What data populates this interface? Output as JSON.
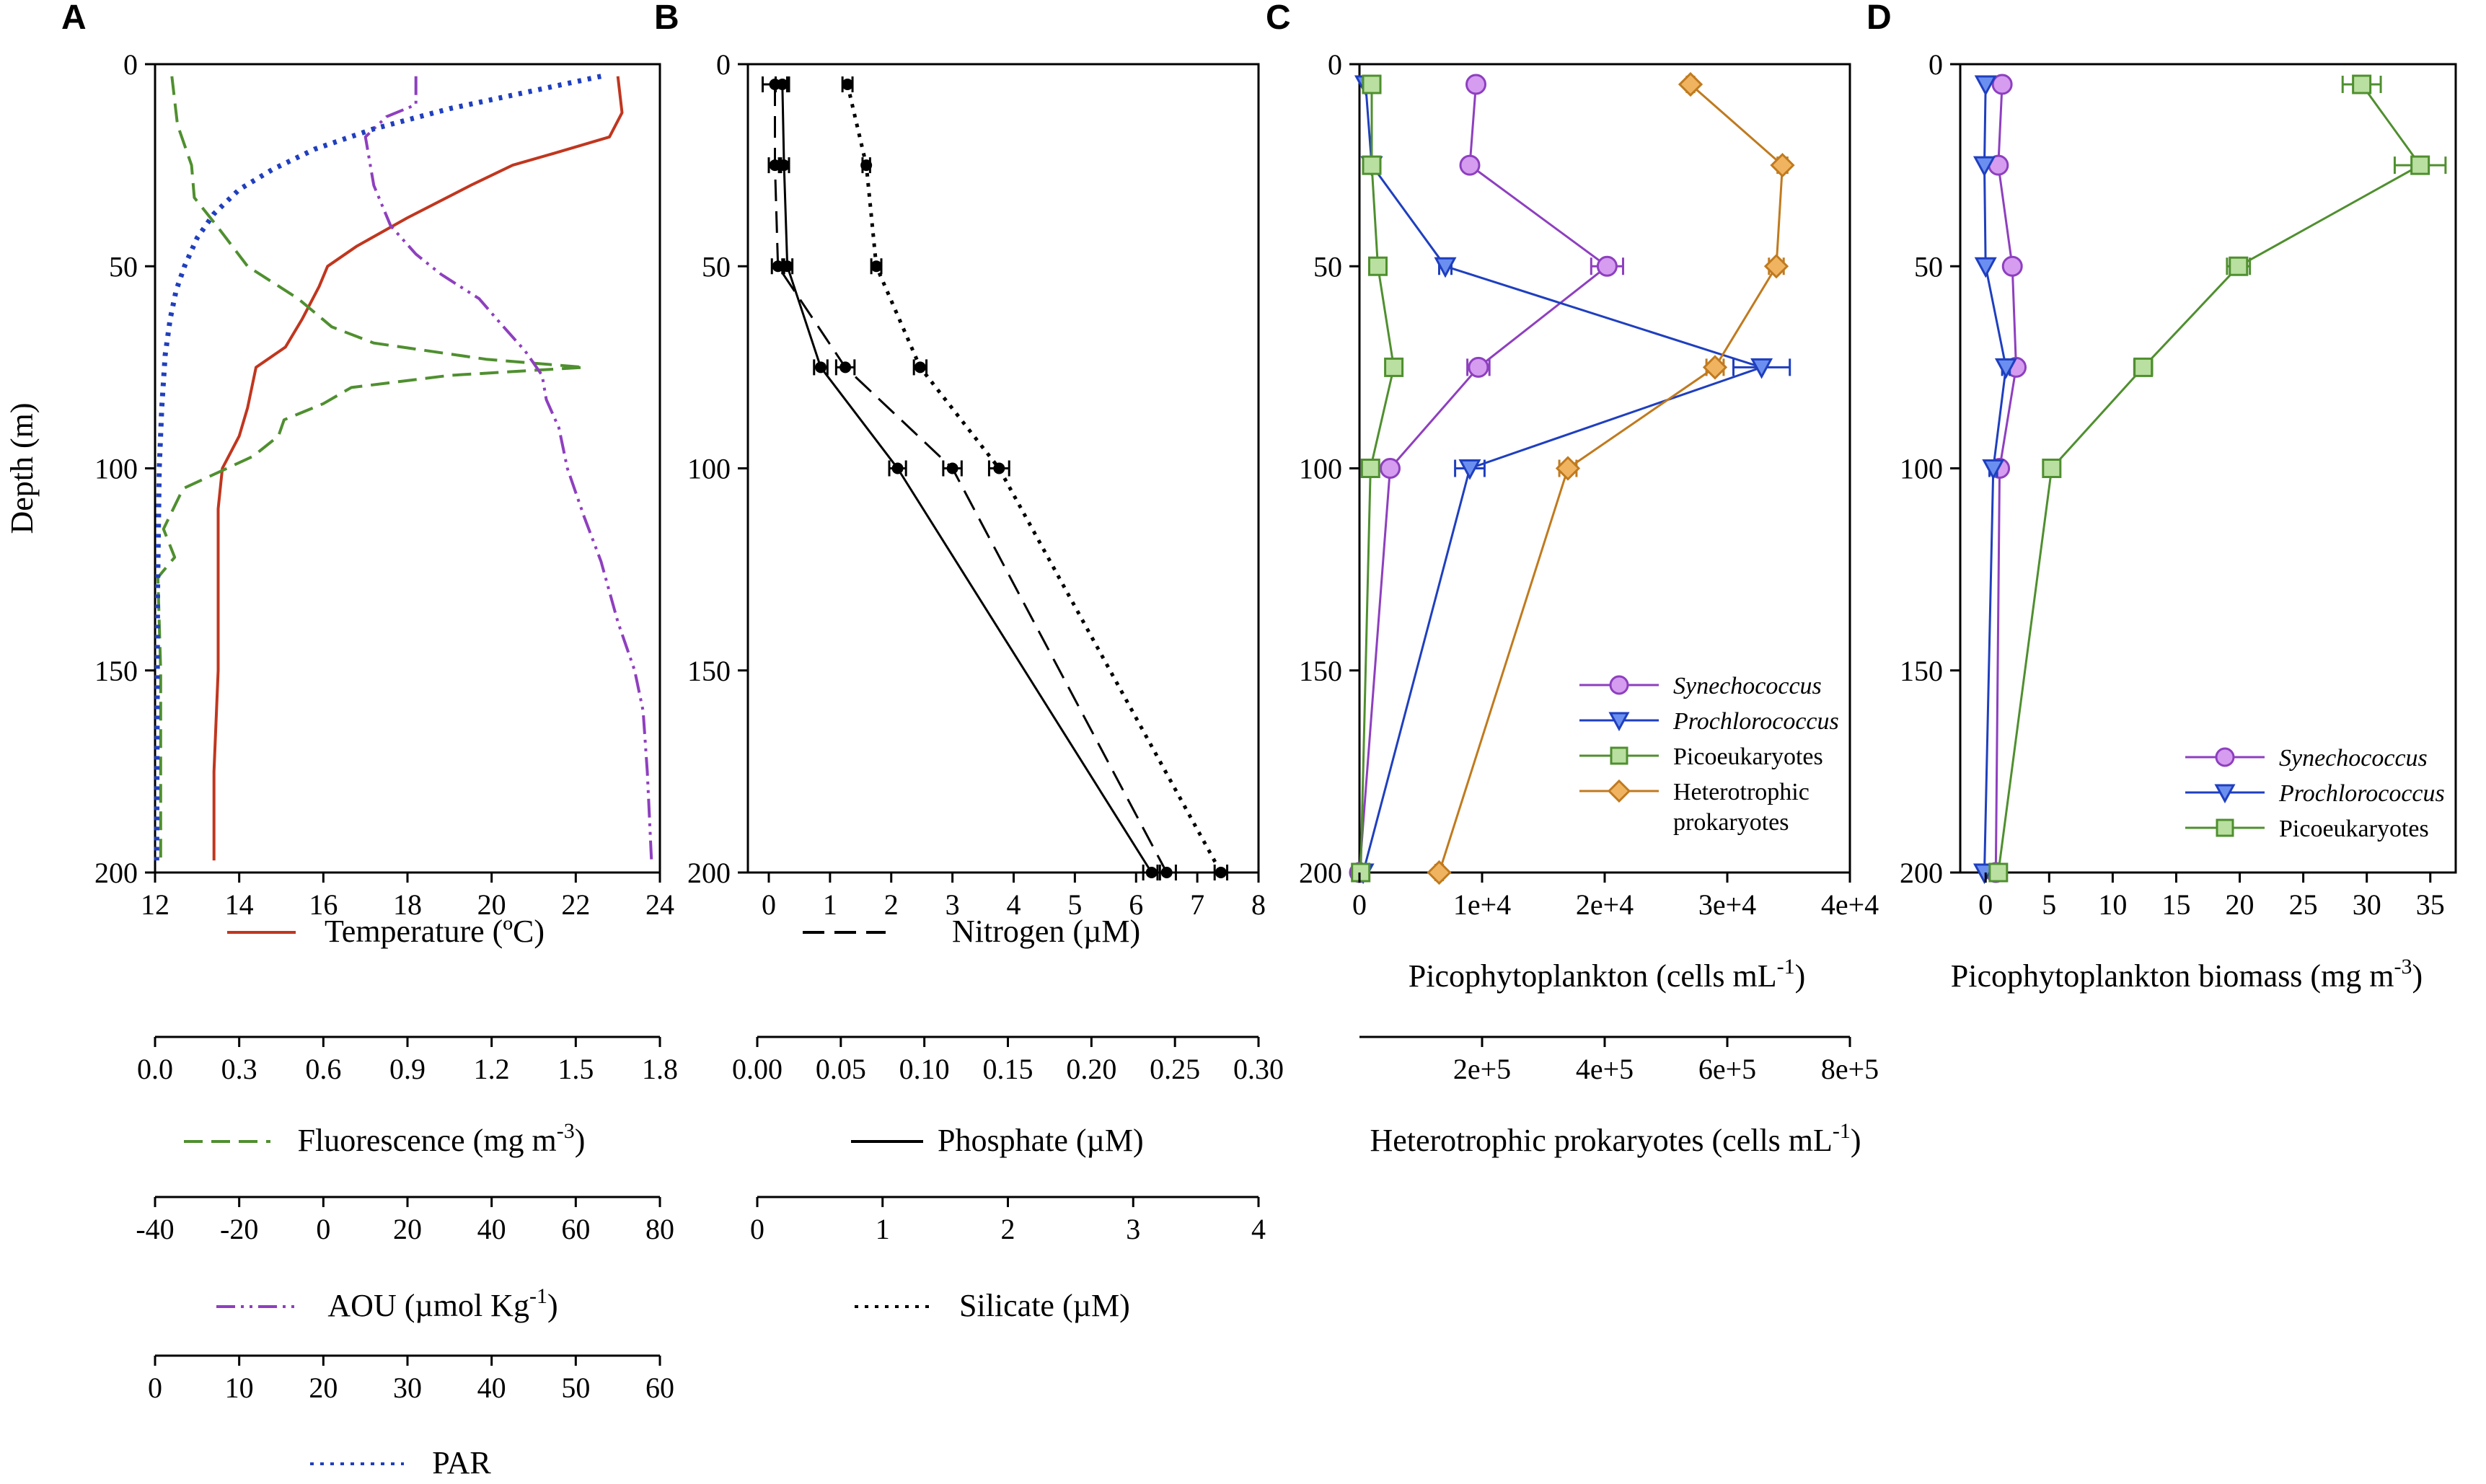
{
  "chart_data": [
    {
      "panel": "A",
      "type": "line",
      "ylabel": "Depth (m)",
      "ylim": [
        0,
        200
      ],
      "yticks": [
        "0",
        "50",
        "100",
        "150",
        "200"
      ],
      "axes": [
        {
          "name": "Temperature (ºC)",
          "range": [
            12,
            24
          ],
          "ticks": [
            "12",
            "14",
            "16",
            "18",
            "20",
            "22",
            "24"
          ],
          "color": "#c0361e",
          "dash": "solid"
        },
        {
          "name": "Fluorescence (mg m-3)",
          "title_main": "Fluorescence (mg m",
          "title_sup": "-3",
          "title_end": ")",
          "range": [
            0,
            1.8
          ],
          "ticks": [
            "0.0",
            "0.3",
            "0.6",
            "0.9",
            "1.2",
            "1.5",
            "1.8"
          ],
          "color": "#4f8f2f",
          "dash": "long-dash"
        },
        {
          "name": "AOU (µmol Kg-1)",
          "title_main": "AOU (µmol Kg",
          "title_sup": "-1",
          "title_end": ")",
          "range": [
            -40,
            80
          ],
          "ticks": [
            "-40",
            "-20",
            "0",
            "20",
            "40",
            "60",
            "80"
          ],
          "color": "#8e3fbf",
          "dash": "dash-dot-dot"
        },
        {
          "name": "PAR",
          "range": [
            0,
            60
          ],
          "ticks": [
            "0",
            "10",
            "20",
            "30",
            "40",
            "50",
            "60"
          ],
          "color": "#1f3fbf",
          "dash": "dotted"
        }
      ],
      "series": [
        {
          "name": "Temperature",
          "axis": 0,
          "points": [
            [
              23.0,
              3
            ],
            [
              23.1,
              12
            ],
            [
              22.8,
              18
            ],
            [
              21.5,
              22
            ],
            [
              20.5,
              25
            ],
            [
              19.5,
              30
            ],
            [
              18.0,
              38
            ],
            [
              16.8,
              45
            ],
            [
              16.1,
              50
            ],
            [
              15.9,
              55
            ],
            [
              15.5,
              63
            ],
            [
              15.1,
              70
            ],
            [
              14.4,
              75
            ],
            [
              14.2,
              85
            ],
            [
              14.0,
              92
            ],
            [
              13.6,
              100
            ],
            [
              13.5,
              110
            ],
            [
              13.5,
              150
            ],
            [
              13.4,
              175
            ],
            [
              13.4,
              197
            ]
          ]
        },
        {
          "name": "Fluorescence",
          "axis": 1,
          "points": [
            [
              0.06,
              3
            ],
            [
              0.08,
              15
            ],
            [
              0.13,
              25
            ],
            [
              0.14,
              33
            ],
            [
              0.22,
              40
            ],
            [
              0.33,
              50
            ],
            [
              0.51,
              58
            ],
            [
              0.63,
              65
            ],
            [
              0.78,
              69
            ],
            [
              1.18,
              73
            ],
            [
              1.53,
              75
            ],
            [
              1.05,
              77
            ],
            [
              0.7,
              80
            ],
            [
              0.6,
              84
            ],
            [
              0.46,
              88
            ],
            [
              0.44,
              92
            ],
            [
              0.35,
              97
            ],
            [
              0.1,
              105
            ],
            [
              0.03,
              115
            ],
            [
              0.07,
              122
            ],
            [
              0.01,
              127
            ],
            [
              0.02,
              150
            ],
            [
              0.02,
              175
            ],
            [
              0.02,
              197
            ]
          ]
        },
        {
          "name": "AOU",
          "axis": 2,
          "points": [
            [
              22,
              3
            ],
            [
              22,
              10
            ],
            [
              15,
              13
            ],
            [
              10,
              18
            ],
            [
              12,
              30
            ],
            [
              16,
              40
            ],
            [
              22,
              47
            ],
            [
              28,
              52
            ],
            [
              37,
              58
            ],
            [
              42,
              64
            ],
            [
              48,
              71
            ],
            [
              52,
              77
            ],
            [
              53,
              83
            ],
            [
              56,
              90
            ],
            [
              58,
              100
            ],
            [
              62,
              112
            ],
            [
              66,
              123
            ],
            [
              70,
              138
            ],
            [
              74,
              150
            ],
            [
              76,
              160
            ],
            [
              77,
              175
            ],
            [
              78,
              197
            ]
          ]
        },
        {
          "name": "PAR",
          "axis": 3,
          "points": [
            [
              53,
              3
            ],
            [
              44,
              7
            ],
            [
              35,
              11
            ],
            [
              26,
              16
            ],
            [
              19,
              21
            ],
            [
              14,
              26
            ],
            [
              10,
              31
            ],
            [
              7,
              37
            ],
            [
              5,
              43
            ],
            [
              3.5,
              50
            ],
            [
              2.5,
              56
            ],
            [
              1.8,
              63
            ],
            [
              1.2,
              72
            ],
            [
              0.8,
              85
            ],
            [
              0.5,
              100
            ],
            [
              0.3,
              130
            ],
            [
              0.2,
              197
            ]
          ]
        }
      ]
    },
    {
      "panel": "B",
      "type": "line",
      "ylim": [
        0,
        200
      ],
      "yticks": [
        "0",
        "50",
        "100",
        "150",
        "200"
      ],
      "axes": [
        {
          "name": "Nitrogen (µM)",
          "range": [
            0,
            8
          ],
          "ticks": [
            "0",
            "1",
            "2",
            "3",
            "4",
            "5",
            "6",
            "7",
            "8"
          ],
          "color": "#000000",
          "dash": "dashed"
        },
        {
          "name": "Phosphate (µM)",
          "range": [
            0,
            0.3
          ],
          "ticks": [
            "0.00",
            "0.05",
            "0.10",
            "0.15",
            "0.20",
            "0.25",
            "0.30"
          ],
          "color": "#000000",
          "dash": "solid"
        },
        {
          "name": "Silicate (µM)",
          "range": [
            0,
            4
          ],
          "ticks": [
            "0",
            "1",
            "2",
            "3",
            "4"
          ],
          "color": "#000000",
          "dash": "dotted"
        }
      ],
      "series": [
        {
          "name": "Nitrogen",
          "axis": 0,
          "dash": "dashed",
          "points": [
            [
              0.1,
              5
            ],
            [
              0.1,
              25
            ],
            [
              0.15,
              50
            ],
            [
              1.25,
              75
            ],
            [
              3.0,
              100
            ],
            [
              6.5,
              200
            ]
          ],
          "err": [
            0.2,
            0.1,
            0.1,
            0.15,
            0.15,
            0.15
          ]
        },
        {
          "name": "Phosphate",
          "axis": 1,
          "dash": "solid",
          "points": [
            [
              0.015,
              5
            ],
            [
              0.016,
              25
            ],
            [
              0.018,
              50
            ],
            [
              0.038,
              75
            ],
            [
              0.084,
              100
            ],
            [
              0.236,
              200
            ]
          ],
          "err": [
            0.004,
            0.003,
            0.003,
            0.004,
            0.005,
            0.005
          ]
        },
        {
          "name": "Silicate",
          "axis": 2,
          "dash": "dotted",
          "points": [
            [
              0.72,
              5
            ],
            [
              0.87,
              25
            ],
            [
              0.95,
              50
            ],
            [
              1.3,
              75
            ],
            [
              1.93,
              100
            ],
            [
              3.7,
              200
            ]
          ],
          "err": [
            0.04,
            0.03,
            0.04,
            0.05,
            0.08,
            0.05
          ]
        }
      ]
    },
    {
      "panel": "C",
      "type": "line",
      "ylim": [
        0,
        200
      ],
      "yticks": [
        "0",
        "50",
        "100",
        "150",
        "200"
      ],
      "axes": [
        {
          "name": "Picophytoplankton (cells mL-1)",
          "title_main": "Picophytoplankton (cells mL",
          "title_sup": "-1",
          "title_end": ")",
          "range": [
            0,
            40000
          ],
          "ticks": [
            "0",
            "1e+4",
            "2e+4",
            "3e+4",
            "4e+4"
          ]
        },
        {
          "name": "Heterotrophic prokaryotes (cells mL-1)",
          "title_main": "Heterotrophic prokaryotes (cells mL",
          "title_sup": "-1",
          "title_end": ")",
          "range": [
            0,
            800000
          ],
          "ticks": [
            "2e+5",
            "4e+5",
            "6e+5",
            "8e+5"
          ],
          "tick_values": [
            200000,
            400000,
            600000,
            800000
          ]
        }
      ],
      "depths": [
        5,
        25,
        50,
        75,
        100,
        200
      ],
      "series": [
        {
          "name": "Synechococcus",
          "italic": true,
          "marker": "circle",
          "color": "#8e3fbf",
          "fill": "#d59cf0",
          "axis": 0,
          "values": [
            9500,
            9000,
            20200,
            9700,
            2500,
            0
          ],
          "err": [
            400,
            400,
            1300,
            900,
            300,
            0
          ]
        },
        {
          "name": "Prochlorococcus",
          "italic": true,
          "marker": "triangle-down",
          "color": "#1f3fbf",
          "fill": "#6a8ff0",
          "axis": 0,
          "values": [
            500,
            1000,
            7000,
            32800,
            9000,
            300
          ],
          "err": [
            0,
            0,
            500,
            2300,
            1200,
            0
          ]
        },
        {
          "name": "Picoeukaryotes",
          "italic": false,
          "marker": "square",
          "color": "#4f8f2f",
          "fill": "#b9e0a0",
          "axis": 0,
          "values": [
            1000,
            1000,
            1500,
            2800,
            900,
            100
          ],
          "err": [
            0,
            0,
            0,
            0,
            0,
            0
          ]
        },
        {
          "name": "Heterotrophic prokaryotes",
          "label_lines": [
            "Heterotrophic",
            "prokaryotes"
          ],
          "italic": false,
          "marker": "diamond",
          "color": "#c07a1e",
          "fill": "#f0b460",
          "axis": 1,
          "values": [
            540000,
            690000,
            680000,
            580000,
            340000,
            130000
          ],
          "err": [
            6000,
            8000,
            12000,
            14000,
            14000,
            6000
          ]
        }
      ],
      "legend_position": "lower-right"
    },
    {
      "panel": "D",
      "type": "line",
      "ylim": [
        0,
        200
      ],
      "yticks": [
        "0",
        "50",
        "100",
        "150",
        "200"
      ],
      "axes": [
        {
          "name": "Picophytoplankton biomass (mg m-3)",
          "title_main": "Picophytoplankton biomass (mg m",
          "title_sup": "-3",
          "title_end": ")",
          "range": [
            -2,
            37
          ],
          "ticks": [
            "0",
            "5",
            "10",
            "15",
            "20",
            "25",
            "30",
            "35"
          ],
          "tick_values": [
            0,
            5,
            10,
            15,
            20,
            25,
            30,
            35
          ]
        }
      ],
      "depths": [
        5,
        25,
        50,
        75,
        100,
        200
      ],
      "series": [
        {
          "name": "Synechococcus",
          "italic": true,
          "marker": "circle",
          "color": "#8e3fbf",
          "fill": "#d59cf0",
          "values": [
            1.3,
            1.0,
            2.1,
            2.4,
            1.1,
            0.8
          ],
          "err": [
            0.3,
            0.2,
            0.3,
            0.4,
            0.2,
            0
          ]
        },
        {
          "name": "Prochlorococcus",
          "italic": true,
          "marker": "triangle-down",
          "color": "#1f3fbf",
          "fill": "#6a8ff0",
          "values": [
            0.0,
            -0.1,
            0.0,
            1.6,
            0.6,
            -0.1
          ],
          "err": [
            0,
            0,
            0,
            0.3,
            0.3,
            0
          ]
        },
        {
          "name": "Picoeukaryotes",
          "italic": false,
          "marker": "square",
          "color": "#4f8f2f",
          "fill": "#b9e0a0",
          "values": [
            29.6,
            34.2,
            19.9,
            12.4,
            5.2,
            1.0
          ],
          "err": [
            1.5,
            2.0,
            0.9,
            0.7,
            0.3,
            0.3
          ]
        }
      ],
      "legend_position": "lower-right"
    }
  ]
}
